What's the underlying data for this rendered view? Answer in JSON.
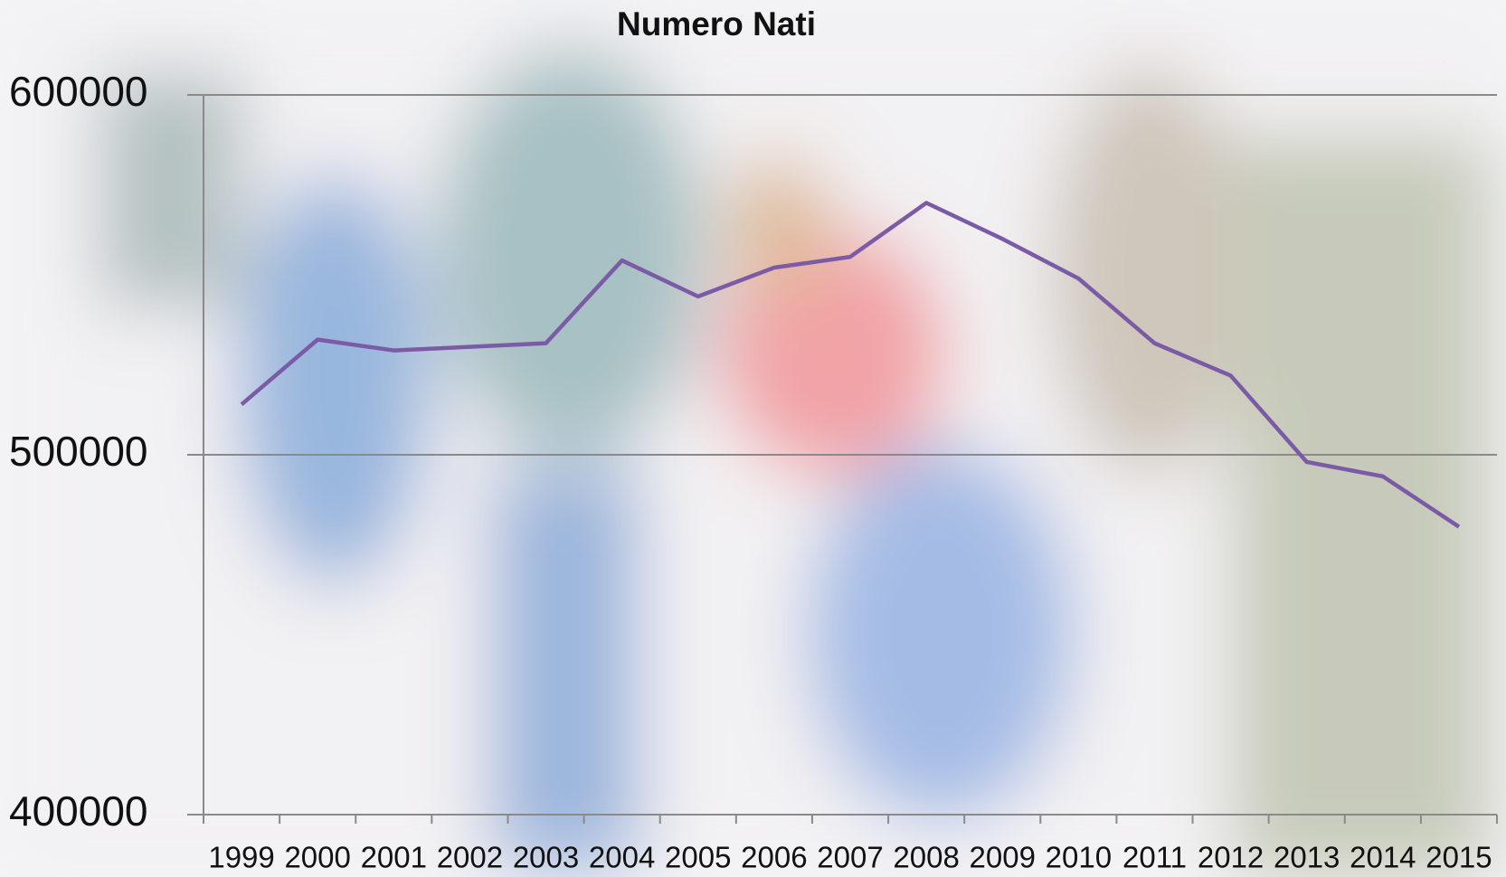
{
  "chart_data": {
    "type": "line",
    "title": "Numero Nati",
    "categories": [
      "1999",
      "2000",
      "2001",
      "2002",
      "2003",
      "2004",
      "2005",
      "2006",
      "2007",
      "2008",
      "2009",
      "2010",
      "2011",
      "2012",
      "2013",
      "2014",
      "2015"
    ],
    "series": [
      {
        "name": "Numero Nati",
        "color": "#7b5aa6",
        "values": [
          514000,
          532000,
          529000,
          530000,
          531000,
          554000,
          544000,
          552000,
          555000,
          570000,
          560000,
          549000,
          531000,
          522000,
          498000,
          494000,
          480000
        ]
      }
    ],
    "ylim": [
      400000,
      600000
    ],
    "yticks": [
      400000,
      500000,
      600000
    ],
    "grid": true
  }
}
